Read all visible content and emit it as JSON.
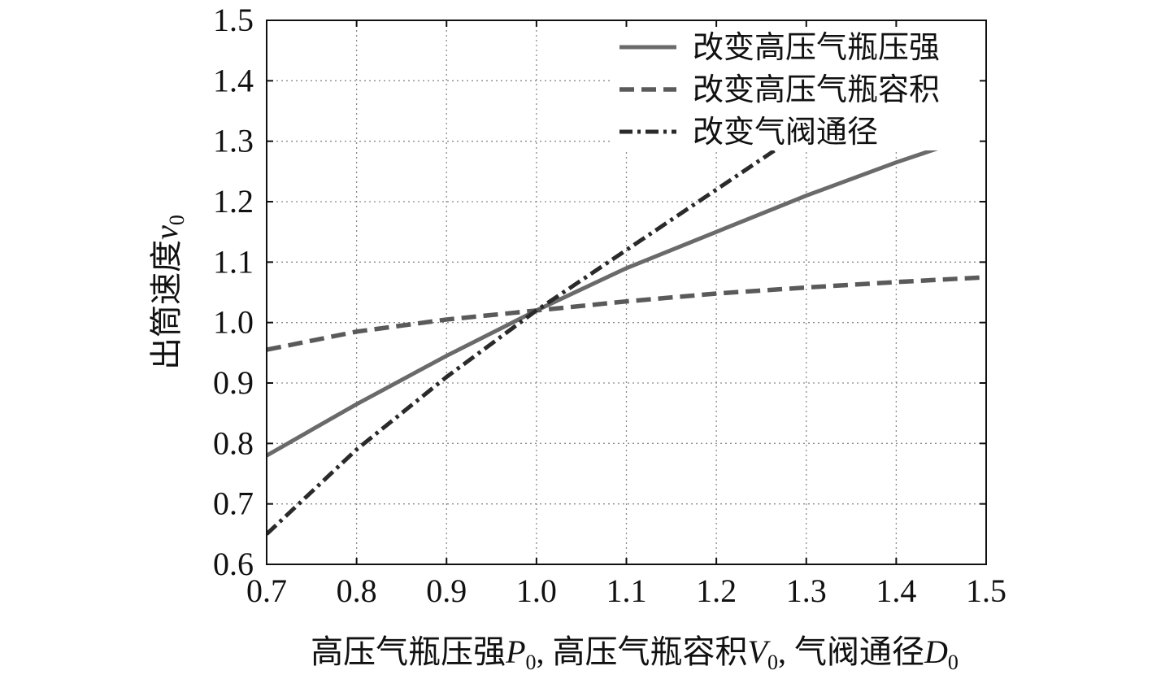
{
  "chart_data": {
    "type": "line",
    "title": "",
    "xlabel": "高压气瓶压强P0, 高压气瓶容积V0, 气阀通径D0",
    "xlabel_parts": [
      {
        "text": "高压气瓶压强",
        "style": "normal"
      },
      {
        "text": "P",
        "style": "italic"
      },
      {
        "text": "0",
        "style": "sub"
      },
      {
        "text": ", 高压气瓶容积",
        "style": "normal"
      },
      {
        "text": "V",
        "style": "italic"
      },
      {
        "text": "0",
        "style": "sub"
      },
      {
        "text": ", 气阀通径",
        "style": "normal"
      },
      {
        "text": "D",
        "style": "italic"
      },
      {
        "text": "0",
        "style": "sub"
      }
    ],
    "ylabel": "出筒速度v0",
    "ylabel_parts": [
      {
        "text": "出筒速度",
        "style": "normal"
      },
      {
        "text": "v",
        "style": "italic"
      },
      {
        "text": "0",
        "style": "sub"
      }
    ],
    "xlim": [
      0.7,
      1.5
    ],
    "ylim": [
      0.6,
      1.5
    ],
    "xticks": [
      "0.7",
      "0.8",
      "0.9",
      "1.0",
      "1.1",
      "1.2",
      "1.3",
      "1.4",
      "1.5"
    ],
    "yticks": [
      "0.6",
      "0.7",
      "0.8",
      "0.9",
      "1.0",
      "1.1",
      "1.2",
      "1.3",
      "1.4",
      "1.5"
    ],
    "grid": true,
    "legend_position": "top-right",
    "series": [
      {
        "name": "改变高压气瓶压强",
        "dash": "solid",
        "color": "#6a6a6a",
        "x": [
          0.7,
          0.8,
          0.9,
          1.0,
          1.1,
          1.2,
          1.3,
          1.4,
          1.45
        ],
        "y": [
          0.78,
          0.865,
          0.945,
          1.02,
          1.09,
          1.15,
          1.21,
          1.265,
          1.29
        ]
      },
      {
        "name": "改变高压气瓶容积",
        "dash": "dashed",
        "color": "#5a5a5a",
        "x": [
          0.7,
          0.8,
          0.9,
          1.0,
          1.1,
          1.2,
          1.3,
          1.4,
          1.5
        ],
        "y": [
          0.955,
          0.985,
          1.005,
          1.02,
          1.035,
          1.048,
          1.058,
          1.067,
          1.075
        ]
      },
      {
        "name": "改变气阀通径",
        "dash": "dashdot",
        "color": "#2a2a2a",
        "x": [
          0.7,
          0.8,
          0.9,
          1.0,
          1.1,
          1.2,
          1.28
        ],
        "y": [
          0.65,
          0.79,
          0.91,
          1.02,
          1.12,
          1.22,
          1.3
        ]
      }
    ]
  }
}
